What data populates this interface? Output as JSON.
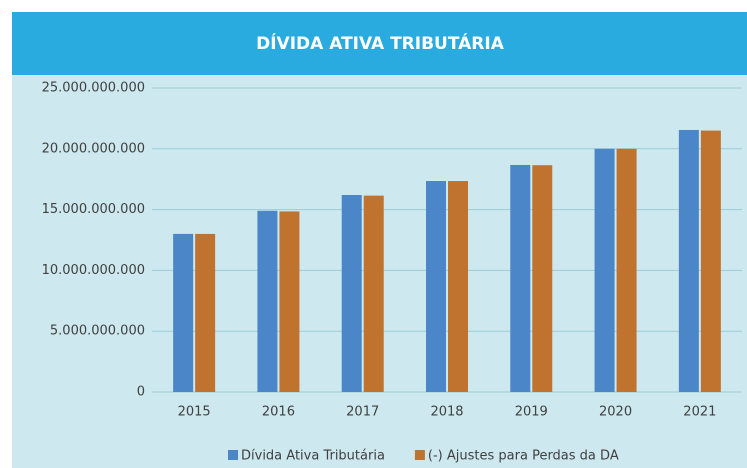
{
  "chart_data": {
    "type": "bar",
    "title": "DÍVIDA ATIVA TRIBUTÁRIA",
    "categories": [
      "2015",
      "2016",
      "2017",
      "2018",
      "2019",
      "2020",
      "2021"
    ],
    "series": [
      {
        "name": "Dívida Ativa Tributária",
        "color": "#4a86c8",
        "values": [
          13000000000,
          14900000000,
          16200000000,
          17350000000,
          18670000000,
          20000000000,
          21550000000
        ]
      },
      {
        "name": "(-) Ajustes para Perdas da DA",
        "color": "#c0732f",
        "values": [
          13000000000,
          14850000000,
          16150000000,
          17350000000,
          18650000000,
          20000000000,
          21500000000
        ]
      }
    ],
    "ylim": [
      0,
      25000000000
    ],
    "yticks": [
      0,
      {
        "value": 5000000000,
        "label": "5.000.000.000"
      },
      {
        "value": 10000000000,
        "label": "10.000.000.000"
      },
      {
        "value": 15000000000,
        "label": "15.000.000.000"
      },
      {
        "value": 20000000000,
        "label": "20.000.000.000"
      },
      {
        "value": 25000000000,
        "label": "25.000.000.000"
      }
    ],
    "grid": true,
    "legend": "bottom"
  }
}
